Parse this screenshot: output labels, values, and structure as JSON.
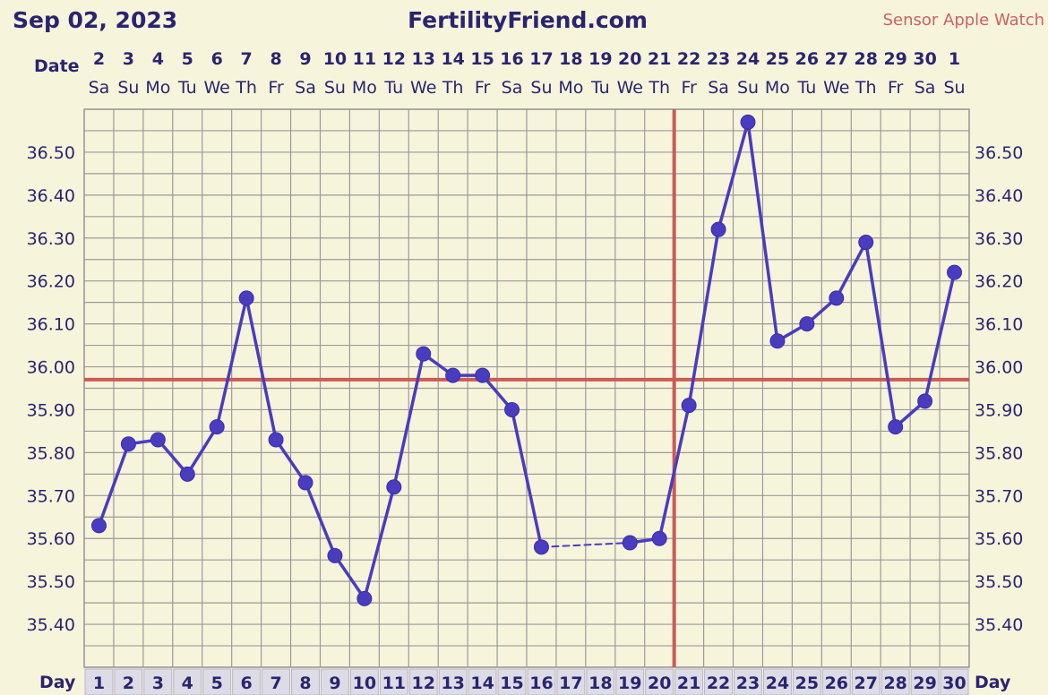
{
  "header": {
    "date": "Sep 02, 2023",
    "site": "FertilityFriend.com",
    "sensor": "Sensor Apple Watch"
  },
  "labels": {
    "date_row": "Date",
    "day_row": "Day"
  },
  "colors": {
    "background": "#f7f4dc",
    "grid": "#9a9a9a",
    "series": "#4a3cbf",
    "coverline": "#cc5a55",
    "text": "#2a2470",
    "day_cell": "#dcdbe6"
  },
  "chart_data": {
    "type": "line",
    "title": "",
    "xlabel": "Day",
    "ylabel": "",
    "ylim": [
      35.3,
      36.6
    ],
    "grid": true,
    "yticks": [
      "35.40",
      "35.50",
      "35.60",
      "35.70",
      "35.80",
      "35.90",
      "36.00",
      "36.10",
      "36.20",
      "36.30",
      "36.40",
      "36.50"
    ],
    "days": [
      1,
      2,
      3,
      4,
      5,
      6,
      7,
      8,
      9,
      10,
      11,
      12,
      13,
      14,
      15,
      16,
      17,
      18,
      19,
      20,
      21,
      22,
      23,
      24,
      25,
      26,
      27,
      28,
      29,
      30
    ],
    "dates": [
      "2",
      "3",
      "4",
      "5",
      "6",
      "7",
      "8",
      "9",
      "10",
      "11",
      "12",
      "13",
      "14",
      "15",
      "16",
      "17",
      "18",
      "19",
      "20",
      "21",
      "22",
      "23",
      "24",
      "25",
      "26",
      "27",
      "28",
      "29",
      "30",
      "1"
    ],
    "weekdays": [
      "Sa",
      "Su",
      "Mo",
      "Tu",
      "We",
      "Th",
      "Fr",
      "Sa",
      "Su",
      "Mo",
      "Tu",
      "We",
      "Th",
      "Fr",
      "Sa",
      "Su",
      "Mo",
      "Tu",
      "We",
      "Th",
      "Fr",
      "Sa",
      "Su",
      "Mo",
      "Tu",
      "We",
      "Th",
      "Fr",
      "Sa",
      "Su"
    ],
    "series": [
      {
        "values": [
          35.63,
          35.82,
          35.83,
          35.75,
          35.86,
          36.16,
          35.83,
          35.73,
          35.56,
          35.46,
          35.72,
          36.03,
          35.98,
          35.98,
          35.9,
          35.58,
          null,
          null,
          35.59,
          35.6,
          35.91,
          36.32,
          36.57,
          36.06,
          36.1,
          36.16,
          36.29,
          35.86,
          35.92,
          36.22
        ]
      }
    ],
    "coverline": 35.97,
    "ovulation_day": 21
  }
}
